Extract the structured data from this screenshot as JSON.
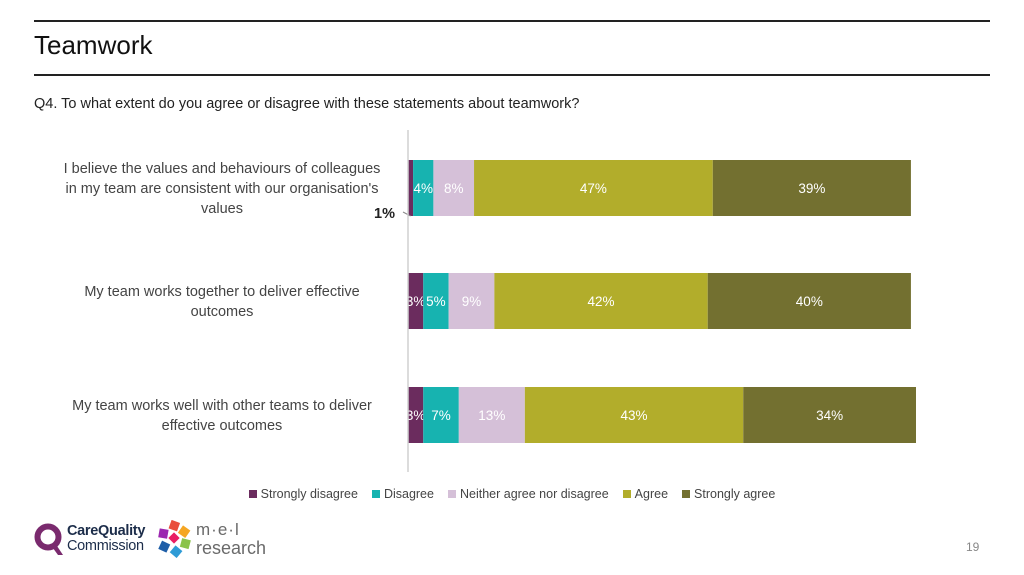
{
  "header": {
    "title": "Teamwork",
    "question": "Q4. To what extent do you agree or disagree with these statements about teamwork?"
  },
  "chart_data": {
    "type": "bar",
    "orientation": "horizontal",
    "stacked": true,
    "categories": [
      [
        "I believe the values and behaviours of colleagues",
        "in my team are consistent with our organisation's",
        "values"
      ],
      [
        "My team works together to deliver effective",
        "outcomes"
      ],
      [
        "My team works well with other teams to deliver",
        "effective outcomes"
      ]
    ],
    "series": [
      {
        "name": "Strongly disagree",
        "color": "#6b2c5e",
        "values": [
          1,
          3,
          3
        ],
        "labels": [
          "",
          "3%",
          "3%"
        ]
      },
      {
        "name": "Disagree",
        "color": "#17b3b0",
        "values": [
          4,
          5,
          7
        ],
        "labels": [
          "4%",
          "5%",
          "7%"
        ]
      },
      {
        "name": "Neither agree nor disagree",
        "color": "#d5c0d8",
        "values": [
          8,
          9,
          13
        ],
        "labels": [
          "8%",
          "9%",
          "13%"
        ]
      },
      {
        "name": "Agree",
        "color": "#b2ad2b",
        "values": [
          47,
          42,
          43
        ],
        "labels": [
          "47%",
          "42%",
          "43%"
        ]
      },
      {
        "name": "Strongly agree",
        "color": "#737030",
        "values": [
          39,
          40,
          34
        ],
        "labels": [
          "39%",
          "40%",
          "34%"
        ]
      }
    ],
    "annotations": [
      {
        "text": "1%",
        "category_index": 0,
        "series_index": 0
      }
    ],
    "xlim": [
      0,
      100
    ],
    "legend": "bottom"
  },
  "footer": {
    "cqc_logo": {
      "line1": "CareQuality",
      "line2": "Commission"
    },
    "mel_logo": {
      "line1": "m·e·l",
      "line2": "research"
    },
    "page_number": "19"
  }
}
